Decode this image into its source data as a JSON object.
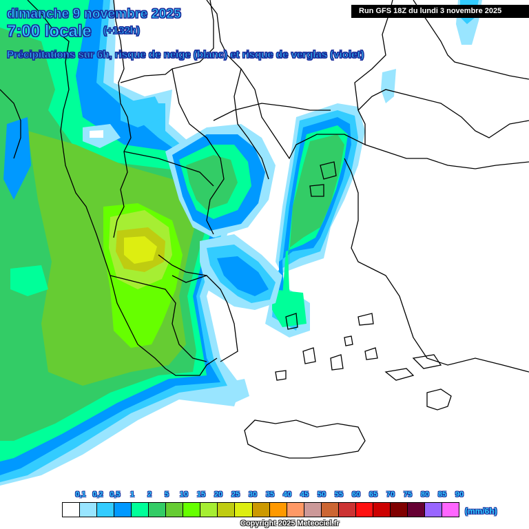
{
  "header": {
    "date": "dimanche 9 novembre 2025",
    "time": "7:00 locale",
    "offset": "(+132h)",
    "description": "Précipitations sur 6h, risque de neige (blanc) et risque de verglas (violet)",
    "run": "Run GFS 18Z du lundi 3 novembre 2025"
  },
  "map": {
    "region": "Balkans / Grèce / Mer Égée",
    "borders_color": "#000000",
    "background": "#ffffff"
  },
  "legend": {
    "units": "(mm/6h)",
    "labels": [
      "0,1",
      "0,2",
      "0,5",
      "1",
      "2",
      "5",
      "10",
      "15",
      "20",
      "25",
      "30",
      "35",
      "40",
      "45",
      "50",
      "55",
      "60",
      "65",
      "70",
      "75",
      "80",
      "85",
      "90"
    ],
    "colors": [
      "#ffffff",
      "#99e5ff",
      "#33ccff",
      "#0099ff",
      "#00ff99",
      "#33cc66",
      "#66cc33",
      "#66ff00",
      "#a6ee33",
      "#bfcc11",
      "#ddee11",
      "#cc9900",
      "#ff9900",
      "#ff9966",
      "#cc9999",
      "#cc6633",
      "#cc3333",
      "#ff1111",
      "#cc0000",
      "#800000",
      "#660033",
      "#9966ff",
      "#ff66ff"
    ]
  },
  "footer": {
    "copyright": "Copyright 2025 Meteociel.fr"
  }
}
